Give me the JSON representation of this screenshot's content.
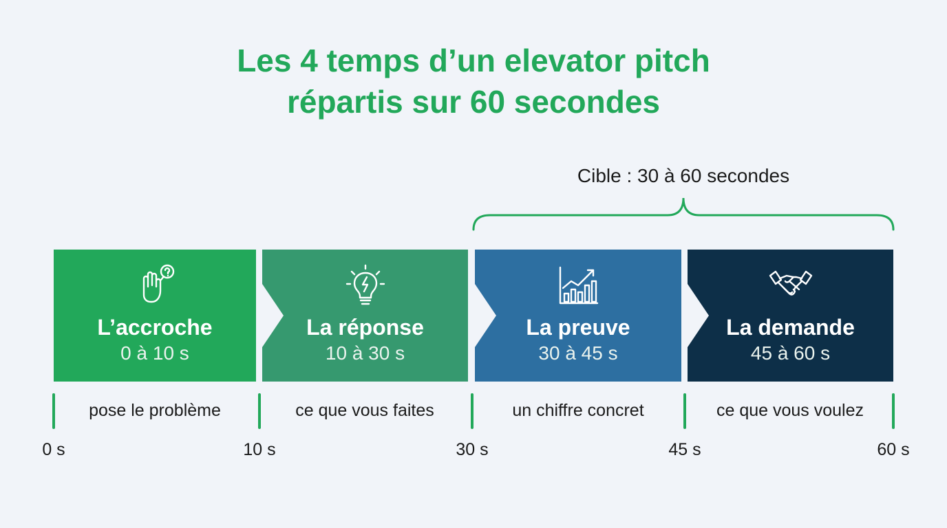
{
  "title": {
    "line1": "Les 4 temps d’un elevator pitch",
    "line2": "répartis sur 60 secondes"
  },
  "target": {
    "label": "Cible : 30 à 60 secondes",
    "from_s": 30,
    "to_s": 60
  },
  "segments": [
    {
      "title": "L’accroche",
      "range": "0 à 10 s",
      "description": "pose le problème",
      "start_s": 0,
      "end_s": 10,
      "color": "#22a85a",
      "icon": "raised-hand-question-icon"
    },
    {
      "title": "La réponse",
      "range": "10 à 30 s",
      "description": "ce que vous faites",
      "start_s": 10,
      "end_s": 30,
      "color": "#36996f",
      "icon": "lightbulb-lightning-icon"
    },
    {
      "title": "La preuve",
      "range": "30 à 45 s",
      "description": "un chiffre concret",
      "start_s": 30,
      "end_s": 45,
      "color": "#2d6fa1",
      "icon": "growth-chart-icon"
    },
    {
      "title": "La demande",
      "range": "45 à 60 s",
      "description": "ce que vous voulez",
      "start_s": 45,
      "end_s": 60,
      "color": "#0d2f48",
      "icon": "handshake-icon"
    }
  ],
  "timeline": {
    "labels": [
      "0 s",
      "10 s",
      "30 s",
      "45 s",
      "60 s"
    ],
    "tick_color": "#22a85a"
  }
}
